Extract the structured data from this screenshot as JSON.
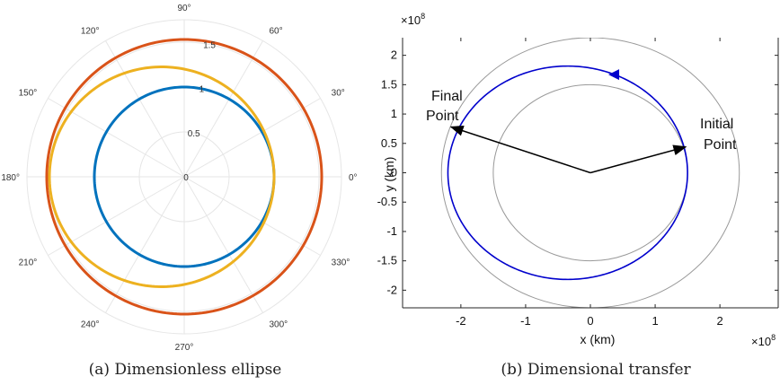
{
  "chart_data": [
    {
      "type": "polar",
      "caption": "(a) Dimensionless ellipse",
      "theta_tick_labels": [
        "0°",
        "30°",
        "60°",
        "90°",
        "120°",
        "150°",
        "180°",
        "210°",
        "240°",
        "270°",
        "300°",
        "330°"
      ],
      "r_tick_labels": [
        "0",
        "0.5",
        "1",
        "1.5"
      ],
      "rlim": [
        0,
        1.75
      ],
      "grid": true,
      "series": [
        {
          "kind": "ellipse",
          "color": "#0072BD",
          "rp": 1.0,
          "ra": 1.0
        },
        {
          "kind": "ellipse",
          "color": "#EDB120",
          "rp": 1.0,
          "ra": 1.5
        },
        {
          "kind": "ellipse",
          "color": "#D95319",
          "rp": 1.53,
          "ra": 1.53
        }
      ]
    },
    {
      "type": "line",
      "caption": "(b) Dimensional transfer",
      "xlabel": "x (km)",
      "ylabel": "y (km)",
      "x_multiplier": "×10",
      "x_multiplier_exp": "8",
      "y_multiplier": "×10",
      "y_multiplier_exp": "8",
      "xlim": [
        -2.9,
        2.9
      ],
      "ylim": [
        -2.3,
        2.3
      ],
      "x_ticks": [
        -2,
        -1,
        0,
        1,
        2
      ],
      "x_tick_labels": [
        "-2",
        "-1",
        "0",
        "1",
        "2"
      ],
      "y_ticks": [
        2,
        1.5,
        1,
        0.5,
        0,
        -0.5,
        -1,
        -1.5,
        -2
      ],
      "y_tick_labels": [
        "2",
        "1.5",
        "1",
        "0.5",
        "0",
        "-0.5",
        "-1",
        "-1.5",
        "-2"
      ],
      "series": [
        {
          "kind": "circle",
          "color": "#999999",
          "r": 1.5
        },
        {
          "kind": "circle",
          "color": "#999999",
          "r": 2.3
        },
        {
          "kind": "ellipse_transfer",
          "color": "#0000CC",
          "rp": 1.5,
          "ra": 2.2
        }
      ],
      "vectors": [
        {
          "to_x": 1.47,
          "to_y": 0.44
        },
        {
          "to_x": -2.15,
          "to_y": 0.78
        }
      ],
      "annotations": {
        "initial_line1": "Initial",
        "initial_line2": "Point",
        "final_line1": "Final",
        "final_line2": "Point"
      }
    }
  ]
}
